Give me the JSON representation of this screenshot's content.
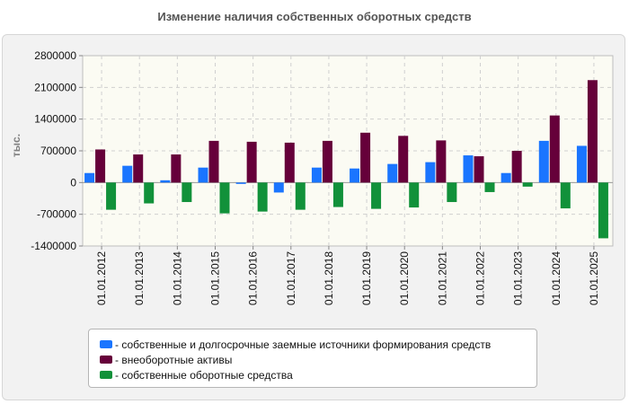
{
  "chart_data": {
    "type": "bar",
    "title": "Изменение наличия собственных оборотных средств",
    "ylabel": "тыс.",
    "ylim": [
      -1400000,
      2800000
    ],
    "yticks": [
      "2800000",
      "2100000",
      "1400000",
      "700000",
      "0",
      "-700000",
      "-1400000"
    ],
    "ytick_values": [
      2800000,
      2100000,
      1400000,
      700000,
      0,
      -700000,
      -1400000
    ],
    "categories": [
      "01.01.2012",
      "01.01.2013",
      "01.01.2014",
      "01.01.2015",
      "01.01.2016",
      "01.01.2017",
      "01.01.2018",
      "01.01.2019",
      "01.01.2020",
      "01.01.2021",
      "01.01.2022",
      "01.01.2023",
      "01.01.2024",
      "01.01.2025"
    ],
    "series": [
      {
        "name": "собственные и долгосрочные заемные источники формирования средств",
        "color": "#1a75ff",
        "values": [
          210000,
          370000,
          50000,
          330000,
          -30000,
          -220000,
          330000,
          310000,
          410000,
          450000,
          600000,
          210000,
          920000,
          810000
        ]
      },
      {
        "name": "внеоборотные активы",
        "color": "#66003a",
        "values": [
          730000,
          620000,
          620000,
          920000,
          900000,
          880000,
          920000,
          1100000,
          1030000,
          930000,
          580000,
          700000,
          1480000,
          2260000
        ]
      },
      {
        "name": "собственные оборотные средства",
        "color": "#11913a",
        "values": [
          -600000,
          -460000,
          -430000,
          -680000,
          -640000,
          -600000,
          -540000,
          -580000,
          -550000,
          -430000,
          -210000,
          -90000,
          -570000,
          -1230000
        ]
      }
    ],
    "grid": true,
    "legend_position": "bottom"
  }
}
